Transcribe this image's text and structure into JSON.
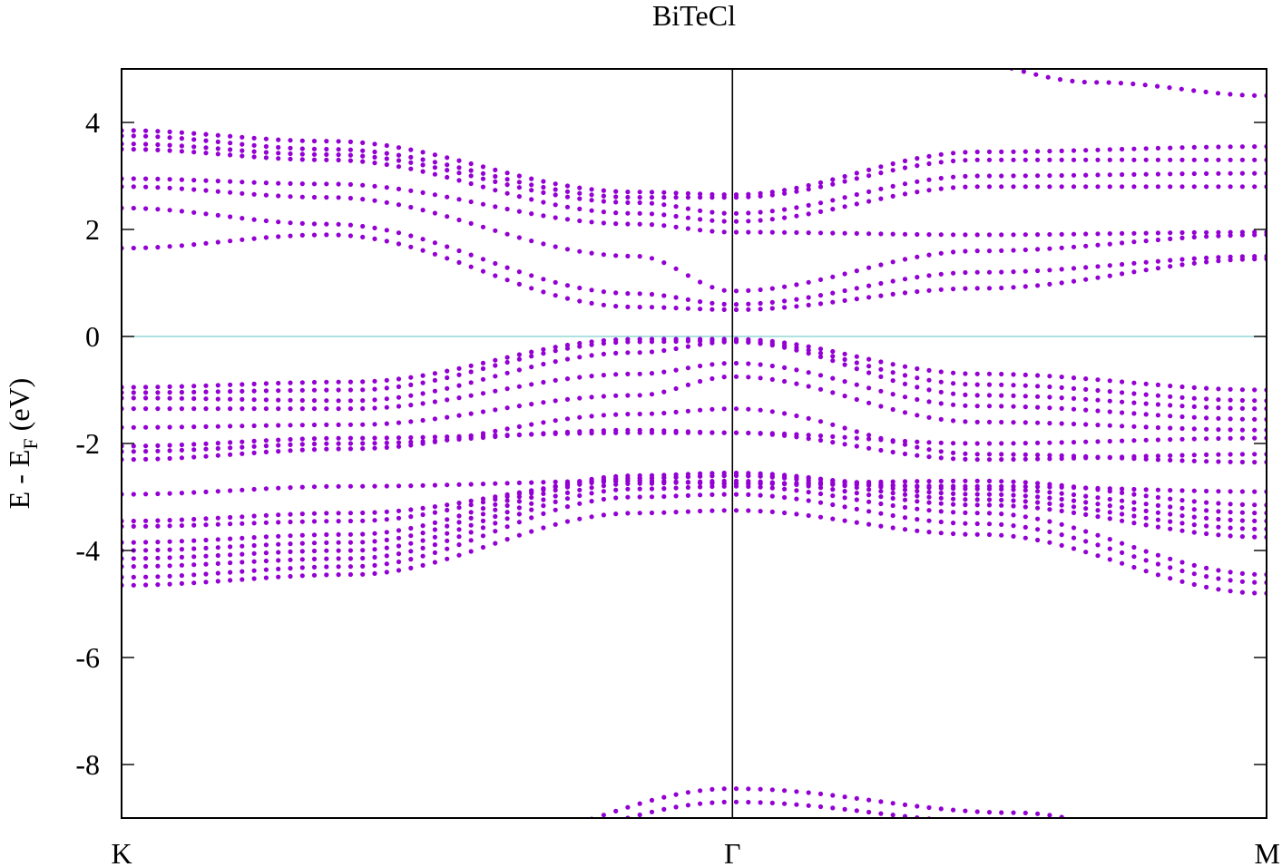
{
  "chart_data": {
    "type": "scatter",
    "title": "BiTeCl",
    "ylabel": "E - E_F (eV)",
    "ylabel_parts": {
      "main": "E - E",
      "sub": "F",
      "tail": " (eV)"
    },
    "xlabel": "",
    "xlim": [
      0,
      1
    ],
    "ylim": [
      -9,
      5
    ],
    "x_ticks": [
      {
        "label": "K",
        "value": 0
      },
      {
        "label": "Γ",
        "value": 0.5335
      },
      {
        "label": "M",
        "value": 1
      }
    ],
    "y_ticks": [
      -8,
      -6,
      -4,
      -2,
      0,
      2,
      4
    ],
    "y_tick_labels": [
      "-8",
      "-6",
      "-4",
      "-2",
      "0",
      "2",
      "4"
    ],
    "fermi_level": 0,
    "point_color": "#9400d3",
    "fermi_line_color": "#7fcfcf",
    "points_per_band": 95,
    "grid": false,
    "legend": "none",
    "bands": [
      {
        "k": [
          0,
          0.3,
          0.5335,
          0.78,
          1
        ],
        "e": [
          -9.9,
          -9.5,
          -8.45,
          -8.9,
          -9.9
        ]
      },
      {
        "k": [
          0,
          0.3,
          0.5335,
          0.78,
          1
        ],
        "e": [
          -10.1,
          -9.6,
          -8.7,
          -9.1,
          -10.1
        ]
      },
      {
        "k": [
          0,
          0.2,
          0.45,
          0.5335,
          0.75,
          1
        ],
        "e": [
          -4.65,
          -4.45,
          -3.3,
          -3.25,
          -3.7,
          -4.8
        ]
      },
      {
        "k": [
          0,
          0.2,
          0.45,
          0.5335,
          0.75,
          1
        ],
        "e": [
          -4.5,
          -4.3,
          -3.0,
          -2.95,
          -3.5,
          -4.6
        ]
      },
      {
        "k": [
          0,
          0.2,
          0.45,
          0.5335,
          0.75,
          1
        ],
        "e": [
          -4.3,
          -4.15,
          -2.85,
          -2.8,
          -3.3,
          -4.45
        ]
      },
      {
        "k": [
          0,
          0.2,
          0.45,
          0.5335,
          0.75,
          1
        ],
        "e": [
          -4.15,
          -4.0,
          -2.75,
          -2.7,
          -3.15,
          -3.75
        ]
      },
      {
        "k": [
          0,
          0.2,
          0.45,
          0.5335,
          0.75,
          1
        ],
        "e": [
          -4.0,
          -3.85,
          -2.65,
          -2.6,
          -3.05,
          -3.6
        ]
      },
      {
        "k": [
          0,
          0.2,
          0.45,
          0.5335,
          0.75,
          1
        ],
        "e": [
          -3.85,
          -3.7,
          -2.6,
          -2.55,
          -2.95,
          -3.45
        ]
      },
      {
        "k": [
          0,
          0.2,
          0.45,
          0.5335,
          0.75,
          1
        ],
        "e": [
          -3.55,
          -3.45,
          -2.65,
          -2.6,
          -2.85,
          -3.3
        ]
      },
      {
        "k": [
          0,
          0.2,
          0.45,
          0.5335,
          0.75,
          1
        ],
        "e": [
          -3.45,
          -3.3,
          -2.7,
          -2.75,
          -2.7,
          -3.15
        ]
      },
      {
        "k": [
          0,
          0.2,
          0.45,
          0.5335,
          0.75,
          1
        ],
        "e": [
          -2.95,
          -2.8,
          -2.7,
          -2.75,
          -2.8,
          -2.9
        ]
      },
      {
        "k": [
          0,
          0.2,
          0.45,
          0.5335,
          0.75,
          1
        ],
        "e": [
          -2.3,
          -2.1,
          -1.45,
          -1.35,
          -2.2,
          -2.35
        ]
      },
      {
        "k": [
          0,
          0.2,
          0.45,
          0.5335,
          0.75,
          1
        ],
        "e": [
          -2.15,
          -2.0,
          -1.75,
          -1.8,
          -2.3,
          -2.2
        ]
      },
      {
        "k": [
          0,
          0.2,
          0.45,
          0.5335,
          0.75,
          1
        ],
        "e": [
          -2.05,
          -1.9,
          -1.8,
          -1.8,
          -2.0,
          -1.9
        ]
      },
      {
        "k": [
          0,
          0.2,
          0.45,
          0.5335,
          0.75,
          1
        ],
        "e": [
          -1.7,
          -1.65,
          -1.1,
          -0.75,
          -1.6,
          -1.75
        ]
      },
      {
        "k": [
          0,
          0.2,
          0.45,
          0.5335,
          0.75,
          1
        ],
        "e": [
          -1.35,
          -1.35,
          -0.7,
          -0.5,
          -1.3,
          -1.55
        ]
      },
      {
        "k": [
          0,
          0.2,
          0.45,
          0.5335,
          0.75,
          1
        ],
        "e": [
          -1.15,
          -1.2,
          -0.3,
          -0.1,
          -1.1,
          -1.35
        ]
      },
      {
        "k": [
          0,
          0.2,
          0.45,
          0.5335,
          0.75,
          1
        ],
        "e": [
          -1.05,
          -1.0,
          -0.1,
          -0.08,
          -0.9,
          -1.2
        ]
      },
      {
        "k": [
          0,
          0.2,
          0.45,
          0.5335,
          0.75,
          1
        ],
        "e": [
          -0.95,
          -0.85,
          -0.05,
          -0.05,
          -0.7,
          -1.0
        ]
      },
      {
        "k": [
          0,
          0.18,
          0.45,
          0.5335,
          0.75,
          1
        ],
        "e": [
          1.65,
          1.9,
          0.55,
          0.5,
          0.9,
          1.45
        ]
      },
      {
        "k": [
          0,
          0.18,
          0.45,
          0.5335,
          0.75,
          1
        ],
        "e": [
          2.4,
          2.1,
          0.8,
          0.6,
          1.2,
          1.5
        ]
      },
      {
        "k": [
          0,
          0.18,
          0.45,
          0.5335,
          0.75,
          1
        ],
        "e": [
          2.8,
          2.6,
          1.5,
          0.85,
          1.6,
          1.9
        ]
      },
      {
        "k": [
          0,
          0.18,
          0.45,
          0.5335,
          0.75,
          1
        ],
        "e": [
          2.95,
          2.85,
          2.1,
          1.95,
          1.9,
          1.95
        ]
      },
      {
        "k": [
          0,
          0.18,
          0.45,
          0.5335,
          0.75,
          1
        ],
        "e": [
          3.5,
          3.3,
          2.3,
          2.15,
          2.8,
          2.8
        ]
      },
      {
        "k": [
          0,
          0.18,
          0.45,
          0.5335,
          0.75,
          1
        ],
        "e": [
          3.6,
          3.4,
          2.5,
          2.3,
          3.0,
          3.05
        ]
      },
      {
        "k": [
          0,
          0.18,
          0.45,
          0.5335,
          0.75,
          1
        ],
        "e": [
          3.75,
          3.5,
          2.6,
          2.6,
          3.3,
          3.3
        ]
      },
      {
        "k": [
          0,
          0.18,
          0.45,
          0.5335,
          0.75,
          1
        ],
        "e": [
          3.85,
          3.65,
          2.7,
          2.65,
          3.45,
          3.55
        ]
      },
      {
        "k": [
          0.5335,
          0.7,
          0.85,
          1
        ],
        "e": [
          5.9,
          5.3,
          4.75,
          4.5
        ]
      }
    ]
  }
}
